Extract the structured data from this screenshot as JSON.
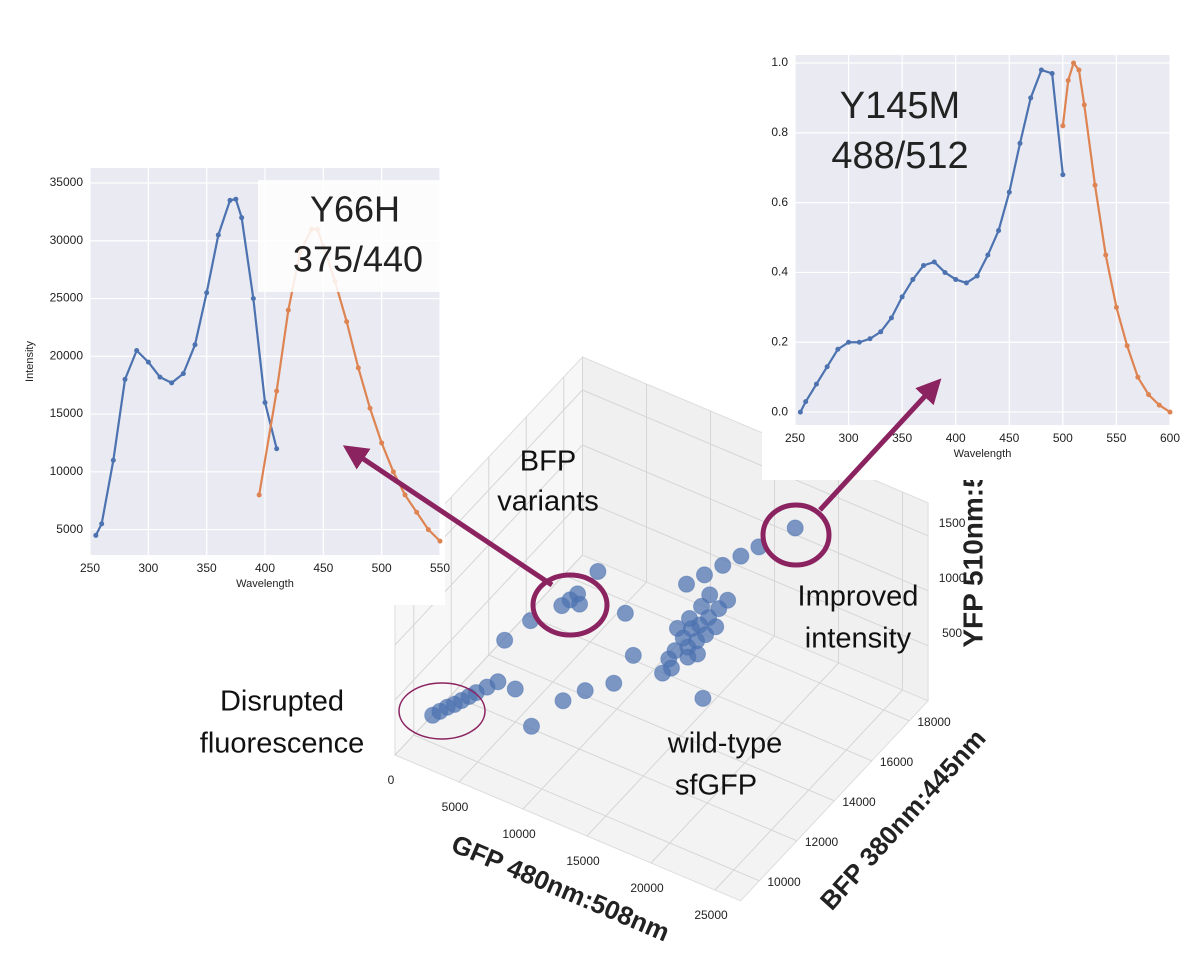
{
  "chart_data": [
    {
      "type": "scatter3d",
      "xlabel": "GFP 480nm:508nm",
      "ylabel": "BFP 380nm:445nm",
      "zlabel": "YFP 510nm:5",
      "xlim": [
        0,
        27000
      ],
      "ylim": [
        9000,
        19000
      ],
      "zlim": [
        0,
        1800
      ],
      "xticks": [
        0,
        5000,
        10000,
        15000,
        20000,
        25000
      ],
      "yticks": [
        10000,
        12000,
        14000,
        16000,
        18000
      ],
      "zticks": [
        500,
        1000,
        1500
      ],
      "color": "#4c72b0",
      "x": [
        600,
        970,
        1340,
        1710,
        2080,
        2460,
        2830,
        3380,
        3940,
        13590,
        14510,
        15440,
        16370,
        17300,
        19150,
        12800,
        13000,
        13200,
        13500,
        13700,
        13900,
        14100,
        12600,
        12900,
        13400,
        14300,
        14600,
        13100,
        13800,
        14800,
        12400,
        15000,
        13600,
        14400,
        12700,
        6280,
        6000,
        6500,
        6800,
        7500,
        4000,
        5000,
        8000,
        9000,
        7000,
        10500,
        11000,
        9500,
        16000,
        3000
      ],
      "y": [
        10600,
        10730,
        10870,
        11000,
        11130,
        11270,
        11400,
        11600,
        11800,
        15270,
        15600,
        15940,
        16270,
        16600,
        17270,
        15200,
        15500,
        15800,
        15400,
        15900,
        15600,
        16100,
        15000,
        15900,
        16200,
        15800,
        16300,
        14800,
        15200,
        16000,
        15600,
        16500,
        16500,
        15300,
        14600,
        14050,
        13800,
        14300,
        14200,
        14700,
        13500,
        12000,
        12500,
        13000,
        11500,
        13500,
        14200,
        14800,
        14500,
        12800
      ],
      "z": [
        100,
        130,
        160,
        180,
        210,
        240,
        270,
        310,
        350,
        1080,
        1150,
        1220,
        1290,
        1360,
        1500,
        450,
        520,
        560,
        480,
        600,
        520,
        650,
        400,
        620,
        700,
        560,
        720,
        380,
        440,
        620,
        560,
        780,
        760,
        480,
        350,
        800,
        780,
        820,
        760,
        1000,
        600,
        300,
        250,
        300,
        150,
        350,
        500,
        700,
        300,
        500
      ],
      "annotations": [
        [
          "BFP",
          "variants"
        ],
        [
          "Improved",
          "intensity"
        ],
        [
          "Disrupted",
          "fluorescence"
        ],
        [
          "wild-type",
          "sfGFP"
        ]
      ]
    },
    {
      "type": "line",
      "labels": [
        "Y66H",
        "375/440"
      ],
      "xlabel": "Wavelength",
      "ylabel": "Intensity",
      "xlim": [
        250,
        550
      ],
      "ylim": [
        2800,
        36300
      ],
      "xticks": [
        250,
        300,
        350,
        400,
        450,
        500,
        550
      ],
      "yticks": [
        5000,
        10000,
        15000,
        20000,
        25000,
        30000,
        35000
      ],
      "grid": true,
      "series": [
        {
          "color": "#4c72b0",
          "x": [
            255,
            260,
            270,
            280,
            290,
            300,
            310,
            320,
            330,
            340,
            350,
            360,
            370,
            375,
            380,
            390,
            400,
            410
          ],
          "values": [
            4500,
            5500,
            11000,
            18000,
            20500,
            19500,
            18200,
            17700,
            18500,
            21000,
            25500,
            30500,
            33500,
            33600,
            32000,
            25000,
            16000,
            12000
          ]
        },
        {
          "color": "#dd8452",
          "x": [
            395,
            410,
            420,
            430,
            440,
            445,
            450,
            460,
            470,
            480,
            490,
            500,
            510,
            520,
            530,
            540,
            550
          ],
          "values": [
            8000,
            17000,
            24000,
            29000,
            31000,
            31000,
            29500,
            26500,
            23000,
            19000,
            15500,
            12500,
            10000,
            8000,
            6500,
            5000,
            4000
          ]
        }
      ]
    },
    {
      "type": "line",
      "labels": [
        "Y145M",
        "488/512"
      ],
      "xlabel": "Wavelength",
      "xlim": [
        250,
        600
      ],
      "ylim": [
        -0.037,
        1.023
      ],
      "xticks": [
        250,
        300,
        350,
        400,
        450,
        500,
        550,
        600
      ],
      "yticks": [
        {
          "value": 0,
          "label": "0.0"
        },
        0.2,
        0.4,
        0.6,
        0.8,
        {
          "value": 1,
          "label": "1.0"
        }
      ],
      "grid": true,
      "series": [
        {
          "color": "#4c72b0",
          "x": [
            255,
            260,
            270,
            280,
            290,
            300,
            310,
            320,
            330,
            340,
            350,
            360,
            370,
            380,
            390,
            400,
            410,
            420,
            430,
            440,
            450,
            460,
            470,
            480,
            490,
            500
          ],
          "values": [
            0.0,
            0.03,
            0.08,
            0.13,
            0.18,
            0.2,
            0.2,
            0.21,
            0.23,
            0.27,
            0.33,
            0.38,
            0.42,
            0.43,
            0.4,
            0.38,
            0.37,
            0.39,
            0.45,
            0.52,
            0.63,
            0.77,
            0.9,
            0.98,
            0.97,
            0.68
          ]
        },
        {
          "color": "#dd8452",
          "x": [
            500,
            505,
            510,
            515,
            520,
            530,
            540,
            550,
            560,
            570,
            580,
            590,
            600
          ],
          "values": [
            0.82,
            0.95,
            1.0,
            0.98,
            0.88,
            0.65,
            0.45,
            0.3,
            0.19,
            0.1,
            0.05,
            0.02,
            0.0
          ]
        }
      ]
    }
  ]
}
